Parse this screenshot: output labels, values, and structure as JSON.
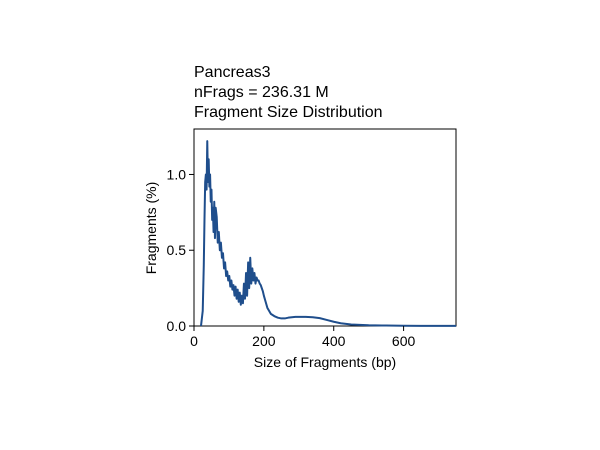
{
  "chart_data": {
    "type": "line",
    "title_lines": [
      "Pancreas3",
      "nFrags = 236.31 M",
      "Fragment Size Distribution"
    ],
    "xlabel": "Size of Fragments (bp)",
    "ylabel": "Fragments (%)",
    "xlim": [
      0,
      750
    ],
    "ylim": [
      0,
      1.3
    ],
    "xticks": [
      0,
      200,
      400,
      600
    ],
    "yticks": [
      0.0,
      0.5,
      1.0
    ],
    "xtick_labels": [
      "0",
      "200",
      "400",
      "600"
    ],
    "ytick_labels": [
      "0.0",
      "0.5",
      "1.0"
    ],
    "grid": false,
    "line_color": "#1f4e8c",
    "series": [
      {
        "x": [
          20,
          25,
          28,
          30,
          32,
          34,
          36,
          38,
          40,
          42,
          44,
          46,
          48,
          50,
          52,
          54,
          56,
          58,
          60,
          62,
          65,
          68,
          71,
          74,
          77,
          80,
          83,
          86,
          89,
          92,
          95,
          98,
          101,
          104,
          107,
          110,
          113,
          116,
          119,
          122,
          125,
          128,
          131,
          134,
          137,
          140,
          143,
          146,
          149,
          152,
          155,
          158,
          161,
          164,
          167,
          170,
          173,
          176,
          179,
          182,
          185,
          188,
          191,
          194,
          197,
          200,
          205,
          210,
          215,
          220,
          230,
          240,
          250,
          260,
          270,
          280,
          290,
          300,
          320,
          340,
          360,
          380,
          400,
          420,
          450,
          500,
          550,
          600,
          650,
          700,
          750
        ],
        "y": [
          0.0,
          0.1,
          0.4,
          0.7,
          0.95,
          1.0,
          0.9,
          1.22,
          0.95,
          1.1,
          0.92,
          1.0,
          0.82,
          0.9,
          0.7,
          0.78,
          0.62,
          0.82,
          0.58,
          0.78,
          0.72,
          0.55,
          0.62,
          0.5,
          0.55,
          0.45,
          0.48,
          0.38,
          0.42,
          0.33,
          0.36,
          0.3,
          0.33,
          0.26,
          0.3,
          0.24,
          0.27,
          0.2,
          0.26,
          0.18,
          0.24,
          0.16,
          0.22,
          0.14,
          0.2,
          0.15,
          0.28,
          0.18,
          0.35,
          0.2,
          0.42,
          0.25,
          0.45,
          0.28,
          0.38,
          0.3,
          0.35,
          0.28,
          0.32,
          0.3,
          0.3,
          0.28,
          0.27,
          0.25,
          0.23,
          0.2,
          0.16,
          0.12,
          0.1,
          0.08,
          0.065,
          0.055,
          0.05,
          0.05,
          0.055,
          0.058,
          0.06,
          0.06,
          0.06,
          0.058,
          0.052,
          0.04,
          0.028,
          0.018,
          0.01,
          0.005,
          0.003,
          0.002,
          0.001,
          0.0008,
          0.0005
        ]
      }
    ]
  }
}
